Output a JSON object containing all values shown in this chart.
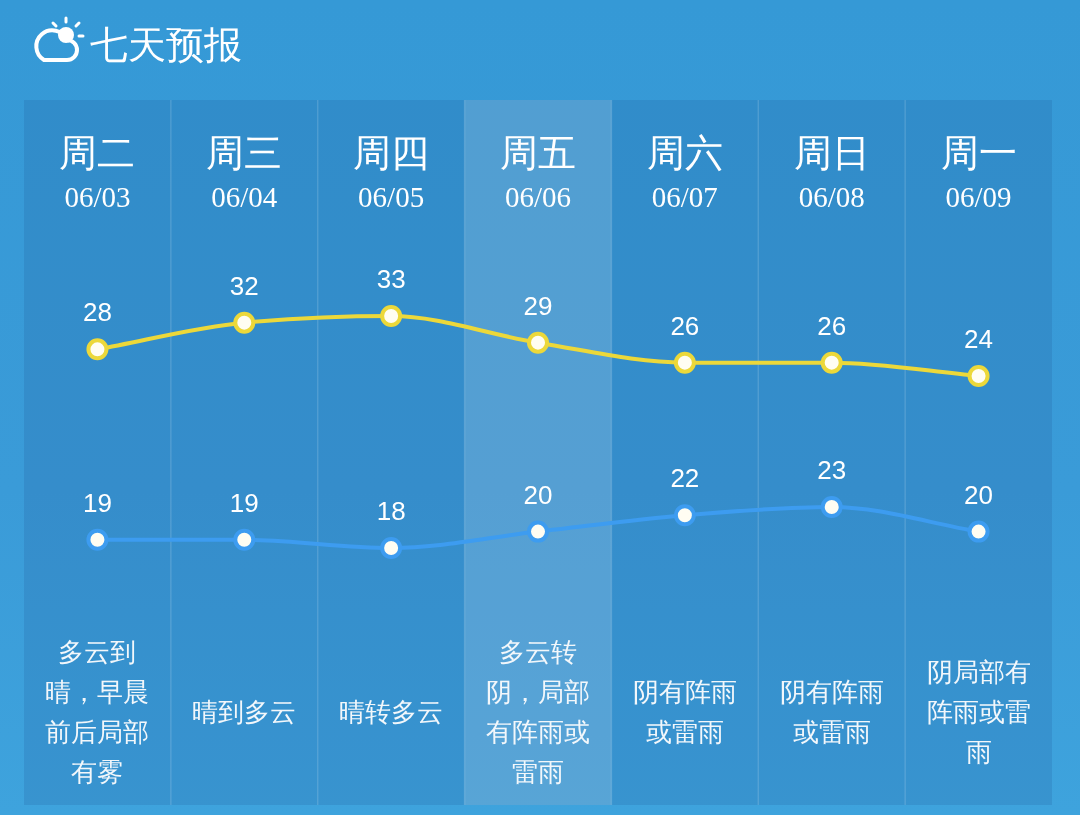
{
  "chart_data": [
    {
      "type": "line",
      "title": "七天预报",
      "categories": [
        "周二\n06/03",
        "周三\n06/04",
        "周四\n06/05",
        "周五\n06/06",
        "周六\n06/07",
        "周日\n06/08",
        "周一\n06/09"
      ],
      "series": [
        {
          "color": "#ecd83a",
          "values": [
            28,
            32,
            33,
            29,
            26,
            26,
            24
          ]
        }
      ],
      "tick_labels": "x",
      "data_labels": true,
      "marker": "circle",
      "line_style": "solid",
      "grid": "x",
      "bands": [
        {
          "axis": "x",
          "from": "周五\n06/06",
          "to": "周五\n06/06",
          "color": "#ffffff"
        }
      ]
    },
    {
      "type": "line",
      "categories": [
        "周二\n06/03",
        "周三\n06/04",
        "周四\n06/05",
        "周五\n06/06",
        "周六\n06/07",
        "周日\n06/08",
        "周一\n06/09"
      ],
      "series": [
        {
          "color": "#3d9cf0",
          "values": [
            19,
            19,
            18,
            20,
            22,
            23,
            20
          ]
        }
      ],
      "tick_labels": false,
      "data_labels": true,
      "marker": "circle",
      "line_style": "solid",
      "grid": "x",
      "bands": [
        {
          "axis": "x",
          "from": "周五\n06/06",
          "to": "周五\n06/06",
          "color": "#ffffff"
        }
      ],
      "annotations": [
        "多云到晴，早晨前后局部有雾",
        "晴到多云",
        "晴转多云",
        "多云转阴，局部有阵雨或雷雨",
        "阴有阵雨或雷雨",
        "阴有阵雨或雷雨",
        "阴局部有阵雨或雷雨"
      ]
    }
  ]
}
